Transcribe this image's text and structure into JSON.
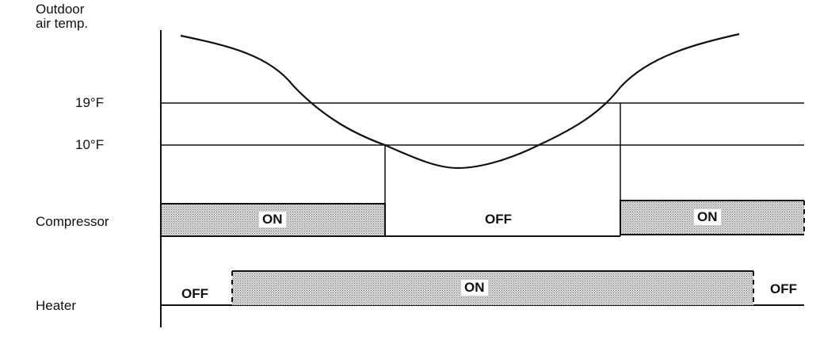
{
  "labels": {
    "temp_line1": "Outdoor",
    "temp_line2": "air temp.",
    "t19": "19°F",
    "t10": "10°F",
    "compressor": "Compressor",
    "heater": "Heater"
  },
  "compressor_states": [
    "ON",
    "OFF",
    "ON"
  ],
  "heater_states": [
    "OFF",
    "ON",
    "OFF"
  ],
  "colors": {
    "line": "#111111",
    "fill": "#c8c8c8"
  }
}
